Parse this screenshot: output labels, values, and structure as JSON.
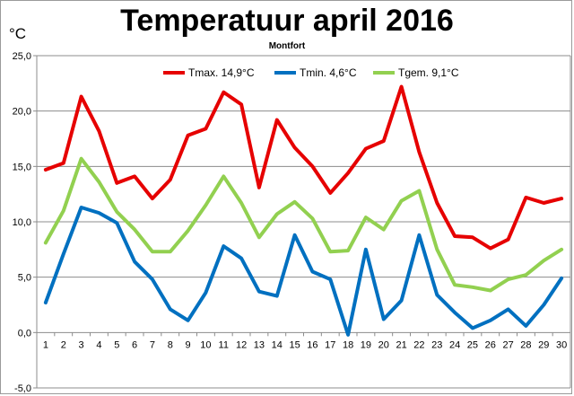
{
  "chart_data": {
    "type": "line",
    "title": "Temperatuur april 2016",
    "subtitle": "Montfort",
    "ylabel": "°C",
    "ylim": [
      -5,
      25
    ],
    "yticks": [
      "-5,0",
      "0,0",
      "5,0",
      "10,0",
      "15,0",
      "20,0",
      "25,0"
    ],
    "ytick_values": [
      -5,
      0,
      5,
      10,
      15,
      20,
      25
    ],
    "grid": true,
    "legend_position": "top",
    "categories": [
      "1",
      "2",
      "3",
      "4",
      "5",
      "6",
      "7",
      "8",
      "9",
      "10",
      "11",
      "12",
      "13",
      "14",
      "15",
      "16",
      "17",
      "18",
      "19",
      "20",
      "21",
      "22",
      "23",
      "24",
      "25",
      "26",
      "27",
      "28",
      "29",
      "30"
    ],
    "series": [
      {
        "name": "Tmax. 14,9°C",
        "color": "#e60000",
        "values": [
          14.7,
          15.3,
          21.3,
          18.2,
          13.5,
          14.1,
          12.1,
          13.8,
          17.8,
          18.4,
          21.7,
          20.6,
          13.1,
          19.2,
          16.7,
          15.0,
          12.6,
          14.4,
          16.6,
          17.3,
          22.2,
          16.3,
          11.7,
          8.7,
          8.6,
          7.6,
          8.4,
          12.2,
          11.7,
          12.1
        ]
      },
      {
        "name": "Tmin. 4,6°C",
        "color": "#0070c0",
        "values": [
          2.7,
          7.1,
          11.3,
          10.8,
          9.9,
          6.4,
          4.8,
          2.1,
          1.1,
          3.6,
          7.8,
          6.7,
          3.7,
          3.3,
          8.8,
          5.5,
          4.8,
          -0.2,
          7.5,
          1.2,
          2.9,
          8.8,
          3.4,
          1.8,
          0.4,
          1.1,
          2.1,
          0.6,
          2.5,
          4.9
        ]
      },
      {
        "name": "Tgem. 9,1°C",
        "color": "#92d050",
        "values": [
          8.1,
          11.0,
          15.7,
          13.6,
          10.9,
          9.3,
          7.3,
          7.3,
          9.2,
          11.5,
          14.1,
          11.7,
          8.6,
          10.7,
          11.8,
          10.3,
          7.3,
          7.4,
          10.4,
          9.3,
          11.9,
          12.8,
          7.5,
          4.3,
          4.1,
          3.8,
          4.8,
          5.2,
          6.5,
          7.5
        ]
      }
    ]
  }
}
